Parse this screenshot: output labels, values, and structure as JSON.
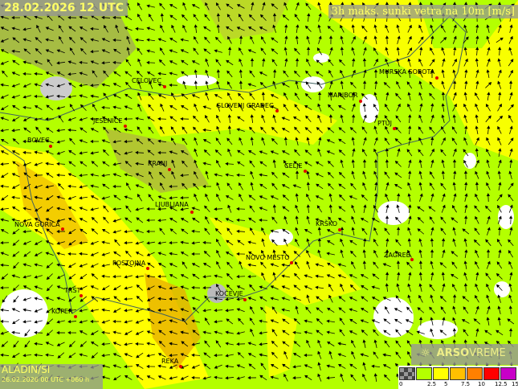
{
  "header": {
    "date_label": "28.02.2026 12 UTC",
    "parameter_label": "3h maks. sunki vetra na 10m [m/s]"
  },
  "model": {
    "name": "ALADIN/SI",
    "run": "26.02.2026 00 UTC +060 h"
  },
  "logo": {
    "brand": "ARSO",
    "product": "VREME",
    "icon": "sun-icon"
  },
  "legend": {
    "labels": [
      "0",
      "2.5",
      "5",
      "7.5",
      "10",
      "12.5",
      "15"
    ],
    "colors": [
      "#777777",
      "#b4ff00",
      "#ffff00",
      "#ffc000",
      "#ff8000",
      "#ff0000",
      "#c800c8"
    ]
  },
  "cities": [
    "CELOVEC",
    "SLOVENJ GRADEC",
    "MURSKA SOBOTA",
    "MARIBOR",
    "PTUJ",
    "JESENICE",
    "BOVEC",
    "KRANJ",
    "CELJE",
    "LJUBLJANA",
    "KRŠKO",
    "NOVA GORICA",
    "NOVO MESTO",
    "ZAGREB",
    "POSTOJNA",
    "TRST",
    "KOČEVJE",
    "KOPER",
    "REKA"
  ],
  "colors": {
    "land_low": "#b4ff00",
    "wind_5": "#ffff00",
    "wind_7_5": "#ffc000",
    "terrain": "#8a8a8a",
    "city_marker": "#e00000",
    "title_text": "#ffff66"
  }
}
